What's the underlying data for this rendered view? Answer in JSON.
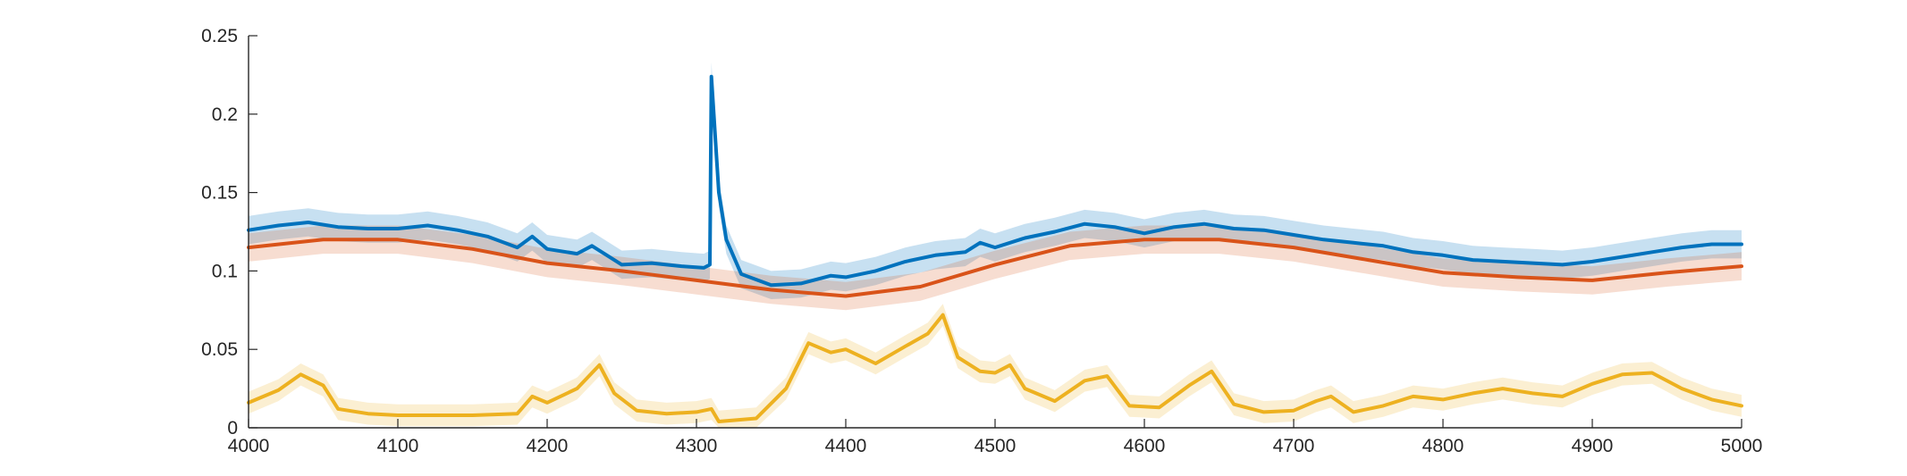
{
  "chart_data": {
    "type": "line",
    "title": "",
    "xlabel": "",
    "ylabel": "",
    "xlim": [
      4000,
      5000
    ],
    "ylim": [
      0,
      0.25
    ],
    "grid": false,
    "x_ticks": [
      4000,
      4100,
      4200,
      4300,
      4400,
      4500,
      4600,
      4700,
      4800,
      4900,
      5000
    ],
    "y_ticks": [
      0,
      0.05,
      0.1,
      0.15,
      0.2,
      0.25
    ],
    "x_tick_labels": [
      "4000",
      "4100",
      "4200",
      "4300",
      "4400",
      "4500",
      "4600",
      "4700",
      "4800",
      "4900",
      "5000"
    ],
    "y_tick_labels": [
      "0",
      "0.05",
      "0.1",
      "0.15",
      "0.2",
      "0.25"
    ],
    "series": [
      {
        "color": "#0072BD",
        "band_color": "#0072BD",
        "band_opacity": 0.22,
        "band_half_width": 0.009,
        "x": [
          4000,
          4020,
          4040,
          4060,
          4080,
          4100,
          4120,
          4140,
          4160,
          4180,
          4190,
          4200,
          4220,
          4230,
          4250,
          4270,
          4290,
          4305,
          4309,
          4310,
          4315,
          4320,
          4330,
          4350,
          4370,
          4390,
          4400,
          4420,
          4440,
          4460,
          4480,
          4490,
          4500,
          4520,
          4540,
          4560,
          4580,
          4600,
          4620,
          4640,
          4660,
          4680,
          4700,
          4720,
          4740,
          4760,
          4780,
          4800,
          4820,
          4840,
          4860,
          4880,
          4900,
          4920,
          4940,
          4960,
          4980,
          5000
        ],
        "values": [
          0.126,
          0.129,
          0.131,
          0.128,
          0.127,
          0.127,
          0.129,
          0.126,
          0.122,
          0.115,
          0.122,
          0.114,
          0.111,
          0.116,
          0.104,
          0.105,
          0.103,
          0.102,
          0.104,
          0.224,
          0.15,
          0.12,
          0.098,
          0.091,
          0.092,
          0.097,
          0.096,
          0.1,
          0.106,
          0.11,
          0.112,
          0.118,
          0.115,
          0.121,
          0.125,
          0.13,
          0.128,
          0.124,
          0.128,
          0.13,
          0.127,
          0.126,
          0.123,
          0.12,
          0.118,
          0.116,
          0.112,
          0.11,
          0.107,
          0.106,
          0.105,
          0.104,
          0.106,
          0.109,
          0.112,
          0.115,
          0.117,
          0.117
        ]
      },
      {
        "color": "#D95319",
        "band_color": "#D95319",
        "band_opacity": 0.2,
        "band_half_width": 0.009,
        "x": [
          4000,
          4050,
          4100,
          4150,
          4200,
          4250,
          4300,
          4350,
          4400,
          4450,
          4500,
          4550,
          4600,
          4650,
          4700,
          4750,
          4800,
          4850,
          4900,
          4950,
          5000
        ],
        "values": [
          0.115,
          0.12,
          0.12,
          0.114,
          0.105,
          0.1,
          0.094,
          0.088,
          0.084,
          0.09,
          0.104,
          0.116,
          0.12,
          0.12,
          0.115,
          0.107,
          0.099,
          0.096,
          0.094,
          0.099,
          0.103
        ]
      },
      {
        "color": "#EDB120",
        "band_color": "#EDB120",
        "band_opacity": 0.2,
        "band_half_width": 0.007,
        "x": [
          4000,
          4020,
          4035,
          4050,
          4060,
          4080,
          4100,
          4150,
          4180,
          4190,
          4200,
          4220,
          4235,
          4245,
          4260,
          4280,
          4300,
          4310,
          4315,
          4340,
          4360,
          4375,
          4390,
          4400,
          4420,
          4440,
          4455,
          4465,
          4475,
          4490,
          4500,
          4510,
          4520,
          4540,
          4560,
          4575,
          4590,
          4610,
          4630,
          4645,
          4660,
          4680,
          4700,
          4715,
          4725,
          4740,
          4760,
          4780,
          4800,
          4820,
          4840,
          4860,
          4880,
          4900,
          4920,
          4940,
          4960,
          4980,
          5000
        ],
        "values": [
          0.016,
          0.024,
          0.034,
          0.027,
          0.012,
          0.009,
          0.008,
          0.008,
          0.009,
          0.02,
          0.016,
          0.025,
          0.04,
          0.022,
          0.011,
          0.009,
          0.01,
          0.012,
          0.004,
          0.006,
          0.025,
          0.054,
          0.048,
          0.05,
          0.041,
          0.052,
          0.06,
          0.072,
          0.045,
          0.036,
          0.035,
          0.04,
          0.025,
          0.017,
          0.03,
          0.033,
          0.014,
          0.013,
          0.027,
          0.036,
          0.015,
          0.01,
          0.011,
          0.017,
          0.02,
          0.01,
          0.014,
          0.02,
          0.018,
          0.022,
          0.025,
          0.022,
          0.02,
          0.028,
          0.034,
          0.035,
          0.025,
          0.018,
          0.014
        ]
      }
    ]
  }
}
